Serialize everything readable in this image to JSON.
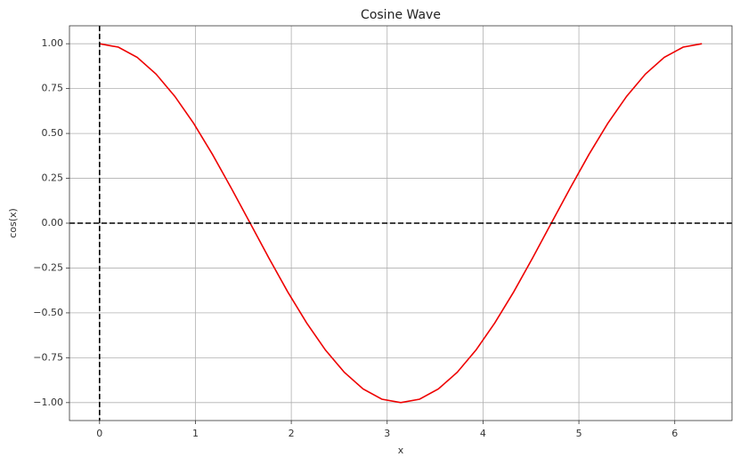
{
  "chart_data": {
    "type": "line",
    "title": "Cosine Wave",
    "xlabel": "x",
    "ylabel": "cos(x)",
    "x": [
      0,
      0.196,
      0.393,
      0.589,
      0.785,
      0.982,
      1.178,
      1.374,
      1.571,
      1.767,
      1.963,
      2.16,
      2.356,
      2.553,
      2.749,
      2.945,
      3.142,
      3.338,
      3.534,
      3.731,
      3.927,
      4.123,
      4.32,
      4.516,
      4.712,
      4.909,
      5.105,
      5.301,
      5.498,
      5.694,
      5.89,
      6.087,
      6.283
    ],
    "values": [
      1,
      0.981,
      0.924,
      0.831,
      0.707,
      0.556,
      0.383,
      0.195,
      0,
      -0.195,
      -0.383,
      -0.556,
      -0.707,
      -0.831,
      -0.924,
      -0.981,
      -1,
      -0.981,
      -0.924,
      -0.831,
      -0.707,
      -0.556,
      -0.383,
      -0.195,
      0,
      0.195,
      0.383,
      0.556,
      0.707,
      0.831,
      0.924,
      0.981,
      1
    ],
    "color": "#ee0000",
    "xlim": [
      -0.314,
      6.597
    ],
    "ylim": [
      -1.1,
      1.1
    ],
    "xticks": [
      0,
      1,
      2,
      3,
      4,
      5,
      6
    ],
    "yticks": [
      {
        "value": -1,
        "label": "−1.00"
      },
      {
        "value": -0.75,
        "label": "−0.75"
      },
      {
        "value": -0.5,
        "label": "−0.50"
      },
      {
        "value": -0.25,
        "label": "−0.25"
      },
      {
        "value": 0,
        "label": "0.00"
      },
      {
        "value": 0.25,
        "label": "0.25"
      },
      {
        "value": 0.5,
        "label": "0.50"
      },
      {
        "value": 0.75,
        "label": "0.75"
      },
      {
        "value": 1,
        "label": "1.00"
      }
    ],
    "hlines": [
      0
    ],
    "vlines": [
      0
    ],
    "reference_color": "#000000",
    "grid": true
  }
}
